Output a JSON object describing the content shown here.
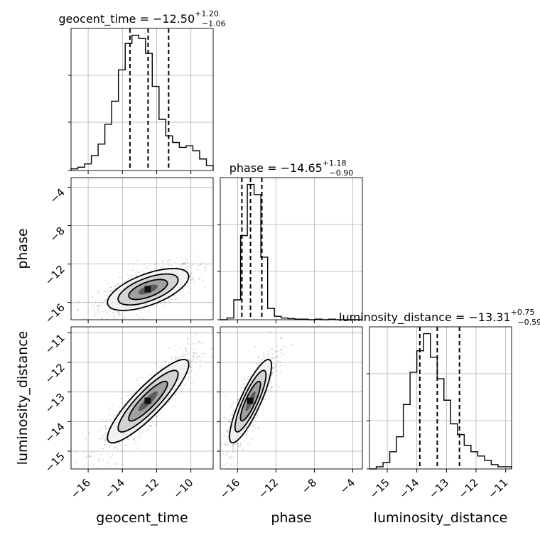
{
  "chart_data": {
    "type": "corner",
    "grid": true,
    "parameters": [
      {
        "name": "geocent_time",
        "median": "−12.50",
        "plus": "+1.20",
        "minus": "−1.06",
        "range": [
          -17.0,
          -8.7
        ],
        "ticks": [
          -16,
          -14,
          -12,
          -10
        ],
        "tick_labels": [
          "−16",
          "−14",
          "−12",
          "−10"
        ],
        "quantiles": [
          -13.56,
          -12.5,
          -11.3
        ],
        "hist": [
          1,
          2,
          4,
          9,
          16,
          28,
          42,
          61,
          77,
          82,
          80,
          71,
          51,
          31,
          21,
          17,
          14,
          15,
          12,
          7,
          3
        ]
      },
      {
        "name": "phase",
        "median": "−14.65",
        "plus": "+1.18",
        "minus": "−0.90",
        "range": [
          -17.8,
          -3.0
        ],
        "ticks": [
          -16,
          -12,
          -8,
          -4
        ],
        "tick_labels": [
          "−16",
          "−12",
          "−8",
          "−4"
        ],
        "quantiles": [
          -15.55,
          -14.65,
          -13.47
        ],
        "hist": [
          0,
          3,
          35,
          148,
          238,
          220,
          110,
          20,
          6,
          3,
          2,
          1,
          1,
          0,
          1,
          0,
          1,
          0,
          0,
          0,
          0
        ]
      },
      {
        "name": "luminosity_distance",
        "median": "−13.31",
        "plus": "+0.75",
        "minus": "−0.59",
        "range": [
          -15.6,
          -10.8
        ],
        "ticks": [
          -15,
          -14,
          -13,
          -12,
          -11
        ],
        "tick_labels": [
          "−15",
          "−14",
          "−13",
          "−12",
          "−11"
        ],
        "quantiles": [
          -13.9,
          -13.31,
          -12.56
        ],
        "hist": [
          0,
          1,
          3,
          8,
          15,
          30,
          45,
          55,
          63,
          52,
          42,
          32,
          21,
          16,
          11,
          8,
          6,
          4,
          2,
          1,
          1
        ]
      }
    ],
    "pairs": [
      {
        "x": "geocent_time",
        "y": "phase",
        "corr": 0.62
      },
      {
        "x": "geocent_time",
        "y": "luminosity_distance",
        "corr": 0.88
      },
      {
        "x": "phase",
        "y": "luminosity_distance",
        "corr": 0.85
      }
    ]
  }
}
